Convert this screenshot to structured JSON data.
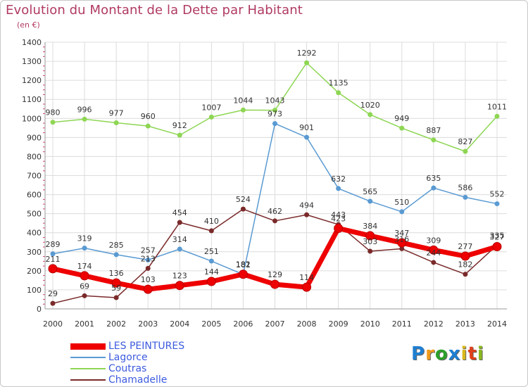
{
  "header": {
    "title": "Evolution du Montant de la Dette par Habitant",
    "subtitle": "(en €)"
  },
  "logo": {
    "text": "Proxiti"
  },
  "colors": {
    "LES PEINTURES": "#ee0000",
    "Lagorce": "#5a9ad2",
    "Coutras": "#8ed653",
    "Chamadelle": "#7a2a2a",
    "title": "#b03a62",
    "legend_text": "#3d5bdf"
  },
  "chart_data": {
    "type": "line",
    "title": "Evolution du Montant de la Dette par Habitant",
    "ylabel": "(en €)",
    "xlabel": "",
    "ylim": [
      0,
      1400
    ],
    "yticks": [
      0,
      100,
      200,
      300,
      400,
      500,
      600,
      700,
      800,
      900,
      1000,
      1100,
      1200,
      1300,
      1400
    ],
    "categories": [
      "2000",
      "2001",
      "2002",
      "2003",
      "2004",
      "2005",
      "2006",
      "2007",
      "2008",
      "2009",
      "2010",
      "2011",
      "2012",
      "2013",
      "2014"
    ],
    "grid": true,
    "legend": "bottom-left",
    "series": [
      {
        "name": "LES PEINTURES",
        "values": [
          211,
          174,
          136,
          103,
          123,
          144,
          182,
          129,
          114,
          423,
          384,
          347,
          309,
          277,
          327
        ]
      },
      {
        "name": "Lagorce",
        "values": [
          289,
          319,
          285,
          257,
          314,
          251,
          181,
          973,
          901,
          632,
          565,
          510,
          635,
          586,
          552
        ]
      },
      {
        "name": "Coutras",
        "values": [
          980,
          996,
          977,
          960,
          912,
          1007,
          1044,
          1043,
          1292,
          1135,
          1020,
          949,
          887,
          827,
          1011
        ]
      },
      {
        "name": "Chamadelle",
        "values": [
          29,
          69,
          59,
          213,
          454,
          410,
          524,
          462,
          494,
          443,
          303,
          316,
          244,
          182,
          335
        ]
      }
    ]
  }
}
